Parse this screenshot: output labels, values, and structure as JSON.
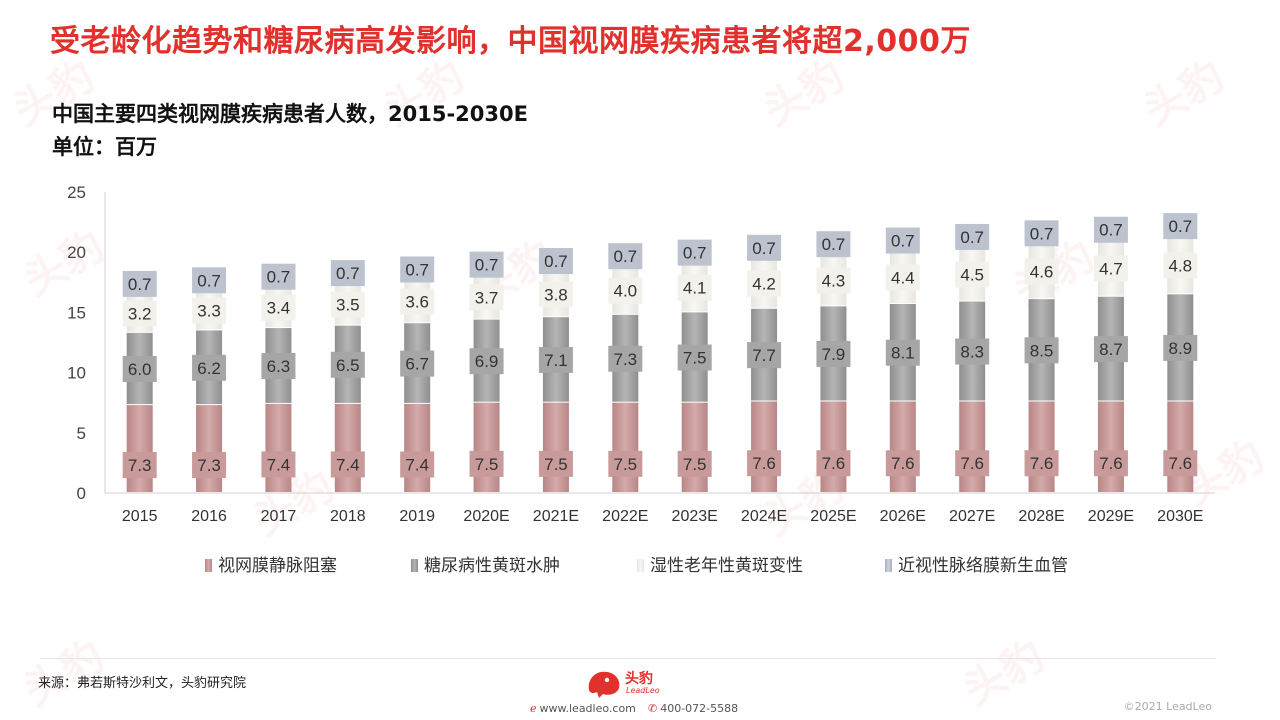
{
  "headline": "受老龄化趋势和糖尿病高发影响，中国视网膜疾病患者将超2,000万",
  "subtitle": "中国主要四类视网膜疾病患者人数，2015-2030E",
  "unit": "单位：百万",
  "source": "来源：弗若斯特沙利文，头豹研究院",
  "brand": {
    "name": "头豹",
    "sub": "LeadLeo"
  },
  "footer": {
    "website": "www.leadleo.com",
    "phone": "400-072-5588",
    "copyright": "©2021 LeadLeo"
  },
  "colors": {
    "headline": "#e0312d",
    "s1": "#c99a9a",
    "s2": "#a6a6a6",
    "s3": "#f2f0ec",
    "s4": "#bcc3cf"
  },
  "chart_data": {
    "type": "bar",
    "stacked": true,
    "categories": [
      "2015",
      "2016",
      "2017",
      "2018",
      "2019",
      "2020E",
      "2021E",
      "2022E",
      "2023E",
      "2024E",
      "2025E",
      "2026E",
      "2027E",
      "2028E",
      "2029E",
      "2030E"
    ],
    "ylim": [
      0,
      25
    ],
    "yticks": [
      0,
      5,
      10,
      15,
      20,
      25
    ],
    "legend_position": "bottom",
    "series": [
      {
        "name": "视网膜静脉阻塞",
        "color": "#c99a9a",
        "values": [
          7.3,
          7.3,
          7.4,
          7.4,
          7.4,
          7.5,
          7.5,
          7.5,
          7.5,
          7.6,
          7.6,
          7.6,
          7.6,
          7.6,
          7.6,
          7.6
        ]
      },
      {
        "name": "糖尿病性黄斑水肿",
        "color": "#a6a6a6",
        "values": [
          6.0,
          6.2,
          6.3,
          6.5,
          6.7,
          6.9,
          7.1,
          7.3,
          7.5,
          7.7,
          7.9,
          8.1,
          8.3,
          8.5,
          8.7,
          8.9
        ]
      },
      {
        "name": "湿性老年性黄斑变性",
        "color": "#f2f0ec",
        "values": [
          3.2,
          3.3,
          3.4,
          3.5,
          3.6,
          3.7,
          3.8,
          4.0,
          4.1,
          4.2,
          4.3,
          4.4,
          4.5,
          4.6,
          4.7,
          4.8
        ]
      },
      {
        "name": "近视性脉络膜新生血管",
        "color": "#bcc3cf",
        "values": [
          0.7,
          0.7,
          0.7,
          0.7,
          0.7,
          0.7,
          0.7,
          0.7,
          0.7,
          0.7,
          0.7,
          0.7,
          0.7,
          0.7,
          0.7,
          0.7
        ]
      }
    ]
  }
}
